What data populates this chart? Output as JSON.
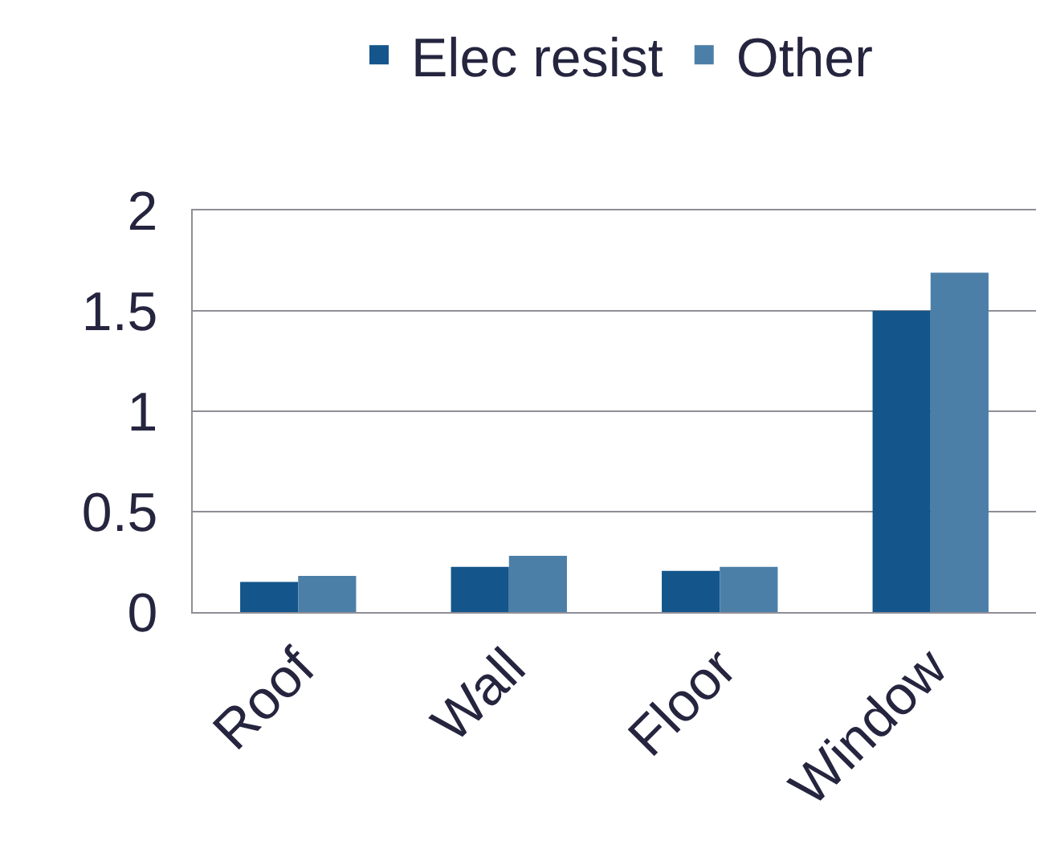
{
  "chart_data": {
    "type": "bar",
    "categories": [
      "Roof",
      "Wall",
      "Floor",
      "Window"
    ],
    "series": [
      {
        "name": "Elec resist",
        "color": "#14558b",
        "values": [
          0.15,
          0.225,
          0.205,
          1.5
        ]
      },
      {
        "name": "Other",
        "color": "#4c7fa8",
        "values": [
          0.18,
          0.28,
          0.225,
          1.69
        ]
      }
    ],
    "ylim": [
      0,
      2
    ],
    "yticks": [
      0,
      0.5,
      1,
      1.5,
      2
    ],
    "grid": "y",
    "legend": "top"
  }
}
